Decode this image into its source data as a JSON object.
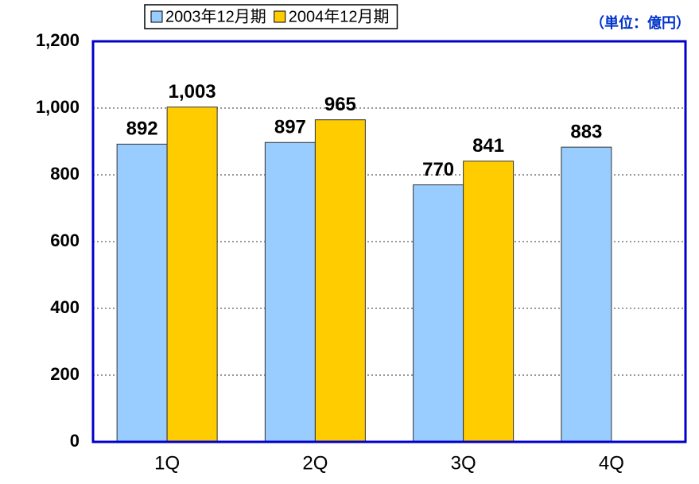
{
  "chart_data": {
    "type": "bar",
    "unit_label": "（単位：億円）",
    "categories": [
      "1Q",
      "2Q",
      "3Q",
      "4Q"
    ],
    "series": [
      {
        "name": "2003年12月期",
        "color": "#99ccff",
        "values": [
          892,
          897,
          770,
          883
        ],
        "value_labels": [
          "892",
          "897",
          "770",
          "883"
        ]
      },
      {
        "name": "2004年12月期",
        "color": "#ffcc00",
        "values": [
          1003,
          965,
          841,
          null
        ],
        "value_labels": [
          "1,003",
          "965",
          "841",
          null
        ]
      }
    ],
    "ylim": [
      0,
      1200
    ],
    "yticks": [
      0,
      200,
      400,
      600,
      800,
      {
        "value": 1000,
        "label": "1,000"
      },
      {
        "value": 1200,
        "label": "1,200"
      }
    ],
    "grid": true,
    "legend": "top"
  }
}
